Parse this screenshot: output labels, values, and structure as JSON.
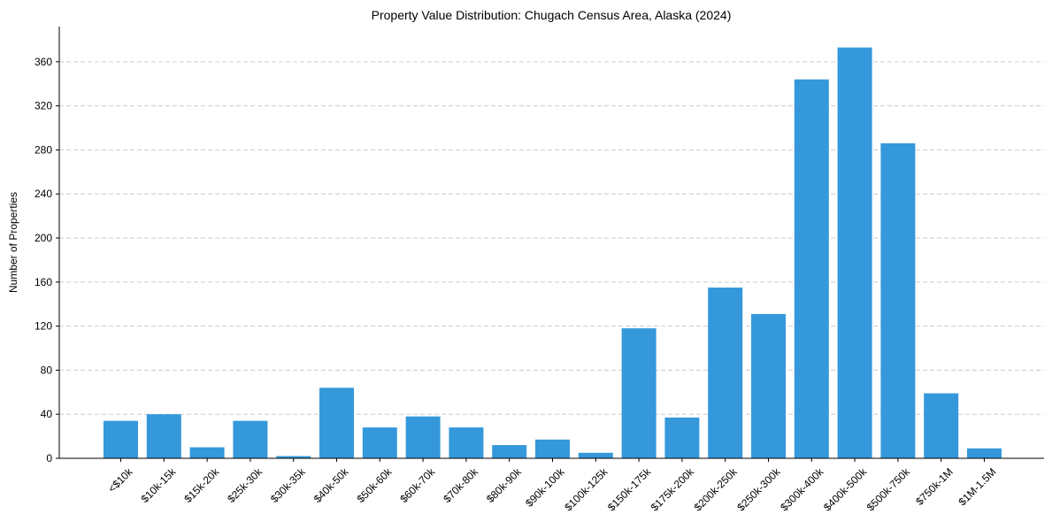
{
  "chart_data": {
    "type": "bar",
    "title": "Property Value Distribution: Chugach Census Area, Alaska (2024)",
    "xlabel": "",
    "ylabel": "Number of Properties",
    "ylim": [
      0,
      392
    ],
    "yticks": [
      0,
      40,
      80,
      120,
      160,
      200,
      240,
      280,
      320,
      360
    ],
    "grid": "horizontal-dashed",
    "bar_color": "#3498db",
    "categories": [
      "<$10k",
      "$10k-15k",
      "$15k-20k",
      "$25k-30k",
      "$30k-35k",
      "$40k-50k",
      "$50k-60k",
      "$60k-70k",
      "$70k-80k",
      "$80k-90k",
      "$90k-100k",
      "$100k-125k",
      "$150k-175k",
      "$175k-200k",
      "$200k-250k",
      "$250k-300k",
      "$300k-400k",
      "$400k-500k",
      "$500k-750k",
      "$750k-1M",
      "$1M-1.5M"
    ],
    "values": [
      34,
      40,
      10,
      34,
      2,
      64,
      28,
      38,
      28,
      12,
      17,
      5,
      118,
      37,
      155,
      131,
      344,
      373,
      286,
      59,
      9
    ]
  }
}
